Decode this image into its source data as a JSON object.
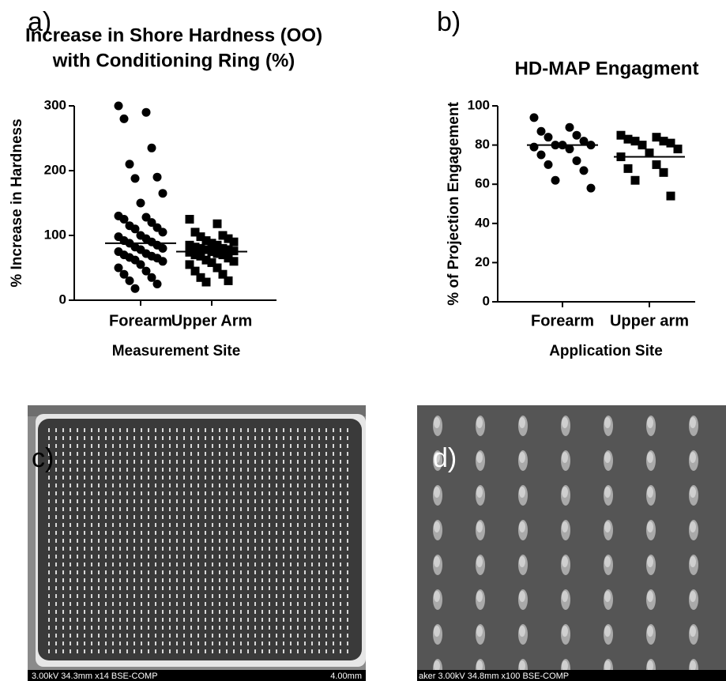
{
  "chart_data": [
    {
      "type": "strip",
      "label": "a)",
      "title": [
        "Increase in Shore Hardness (OO)",
        "with Conditioning Ring (%)"
      ],
      "y_label": "% Increase in Hardness",
      "x_label": "Measurement Site",
      "categories": [
        "Forearm",
        "Upper Arm"
      ],
      "markers": [
        "circle",
        "square"
      ],
      "color": "#000000",
      "values": [
        [
          300,
          290,
          280,
          235,
          210,
          190,
          188,
          165,
          150,
          130,
          128,
          125,
          120,
          115,
          112,
          110,
          105,
          100,
          98,
          95,
          92,
          90,
          88,
          85,
          82,
          80,
          78,
          75,
          72,
          70,
          68,
          66,
          65,
          62,
          60,
          55,
          50,
          45,
          40,
          35,
          30,
          25,
          18
        ],
        [
          125,
          118,
          105,
          100,
          98,
          95,
          92,
          90,
          88,
          85,
          85,
          82,
          80,
          80,
          78,
          78,
          76,
          75,
          74,
          72,
          70,
          70,
          68,
          65,
          62,
          60,
          58,
          55,
          50,
          45,
          40,
          35,
          30,
          28
        ]
      ],
      "means": [
        88,
        75
      ],
      "ylim": [
        0,
        300
      ],
      "yticks": [
        0,
        100,
        200,
        300
      ]
    },
    {
      "type": "strip",
      "label": "b)",
      "title": [
        "HD-MAP Engagment"
      ],
      "y_label": "% of Projection Engagement",
      "x_label": "Application Site",
      "categories": [
        "Forearm",
        "Upper arm"
      ],
      "markers": [
        "circle",
        "square"
      ],
      "color": "#000000",
      "values": [
        [
          94,
          89,
          87,
          85,
          84,
          82,
          80,
          80,
          80,
          79,
          78,
          75,
          72,
          70,
          67,
          62,
          58
        ],
        [
          85,
          84,
          83,
          82,
          82,
          81,
          80,
          78,
          76,
          74,
          70,
          68,
          66,
          62,
          54
        ]
      ],
      "means": [
        80,
        74
      ],
      "ylim": [
        0,
        100
      ],
      "yticks": [
        0,
        20,
        40,
        60,
        80,
        100
      ]
    }
  ],
  "images": [
    {
      "label": "c)",
      "caption": "3.00kV 34.3mm x14 BSE-COMP",
      "scale": "4.00mm"
    },
    {
      "label": "d)",
      "caption": "aker 3.00kV 34.8mm x100 BSE-COMP"
    }
  ]
}
